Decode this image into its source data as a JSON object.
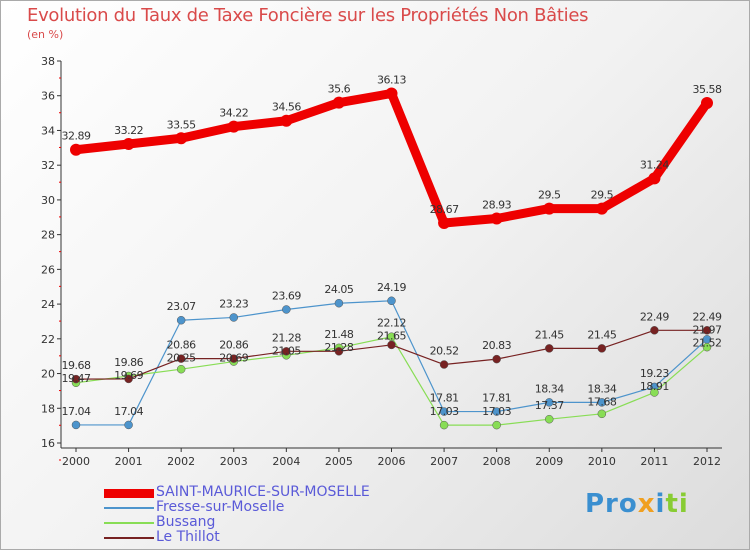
{
  "chart_data": {
    "type": "line",
    "title": "Evolution du Taux de Taxe Foncière sur les Propriétés Non Bâties",
    "ylabel": "(en %)",
    "xlabel": "",
    "ylim": [
      16,
      38
    ],
    "yticks": [
      16,
      18,
      20,
      22,
      24,
      26,
      28,
      30,
      32,
      34,
      36,
      38
    ],
    "x": [
      "2000",
      "2001",
      "2002",
      "2003",
      "2004",
      "2005",
      "2006",
      "2007",
      "2008",
      "2009",
      "2010",
      "2011",
      "2012"
    ],
    "grid": false,
    "legend_position": "bottom-left",
    "series": [
      {
        "name": "SAINT-MAURICE-SUR-MOSELLE",
        "color": "#ee0000",
        "values": [
          32.89,
          33.22,
          33.55,
          34.22,
          34.56,
          35.6,
          36.13,
          28.67,
          28.93,
          29.5,
          29.5,
          31.24,
          35.58
        ]
      },
      {
        "name": "Fresse-sur-Moselle",
        "color": "#4d94cc",
        "values": [
          17.04,
          17.04,
          23.07,
          23.23,
          23.69,
          24.05,
          24.19,
          17.81,
          17.81,
          18.34,
          18.34,
          19.23,
          21.97
        ]
      },
      {
        "name": "Bussang",
        "color": "#88dd55",
        "values": [
          19.47,
          19.86,
          20.25,
          20.69,
          21.05,
          21.48,
          22.12,
          17.03,
          17.03,
          17.37,
          17.68,
          18.91,
          21.52
        ]
      },
      {
        "name": "Le Thillot",
        "color": "#772222",
        "values": [
          19.68,
          19.69,
          20.86,
          20.86,
          21.28,
          21.28,
          21.65,
          20.52,
          20.83,
          21.45,
          21.45,
          22.49,
          22.49
        ]
      }
    ]
  },
  "logo": "Proxiti"
}
